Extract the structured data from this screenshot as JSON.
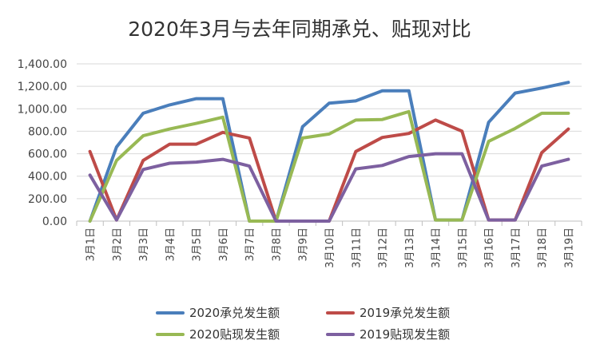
{
  "chart_data": {
    "type": "line",
    "title": "2020年3月与去年同期承兑、贴现对比",
    "xlabel": "",
    "ylabel": "",
    "ylim": [
      0,
      1400
    ],
    "yticks": [
      "0.00",
      "200.00",
      "400.00",
      "600.00",
      "800.00",
      "1,000.00",
      "1,200.00",
      "1,400.00"
    ],
    "grid": true,
    "legend_position": "bottom",
    "categories": [
      "3月1日",
      "3月2日",
      "3月3日",
      "3月4日",
      "3月5日",
      "3月6日",
      "3月7日",
      "3月8日",
      "3月9日",
      "3月10日",
      "3月11日",
      "3月12日",
      "3月13日",
      "3月14日",
      "3月15日",
      "3月16日",
      "3月17日",
      "3月18日",
      "3月19日"
    ],
    "series": [
      {
        "name": "2020承兑发生额",
        "color": "#4a7ebb",
        "values": [
          0,
          660,
          960,
          1035,
          1090,
          1090,
          0,
          0,
          840,
          1050,
          1070,
          1160,
          1160,
          10,
          10,
          880,
          1140,
          1185,
          1235
        ]
      },
      {
        "name": "2019承兑发生额",
        "color": "#be4b48",
        "values": [
          620,
          10,
          540,
          685,
          685,
          790,
          740,
          0,
          0,
          0,
          620,
          745,
          780,
          900,
          800,
          10,
          10,
          610,
          820
        ]
      },
      {
        "name": "2020贴现发生额",
        "color": "#98b954",
        "values": [
          0,
          540,
          760,
          820,
          870,
          925,
          0,
          0,
          740,
          775,
          900,
          905,
          975,
          10,
          10,
          710,
          825,
          960,
          960
        ]
      },
      {
        "name": "2019贴现发生额",
        "color": "#7d60a0",
        "values": [
          410,
          10,
          460,
          515,
          525,
          550,
          490,
          0,
          0,
          0,
          465,
          495,
          575,
          600,
          600,
          10,
          10,
          490,
          550
        ]
      }
    ]
  }
}
